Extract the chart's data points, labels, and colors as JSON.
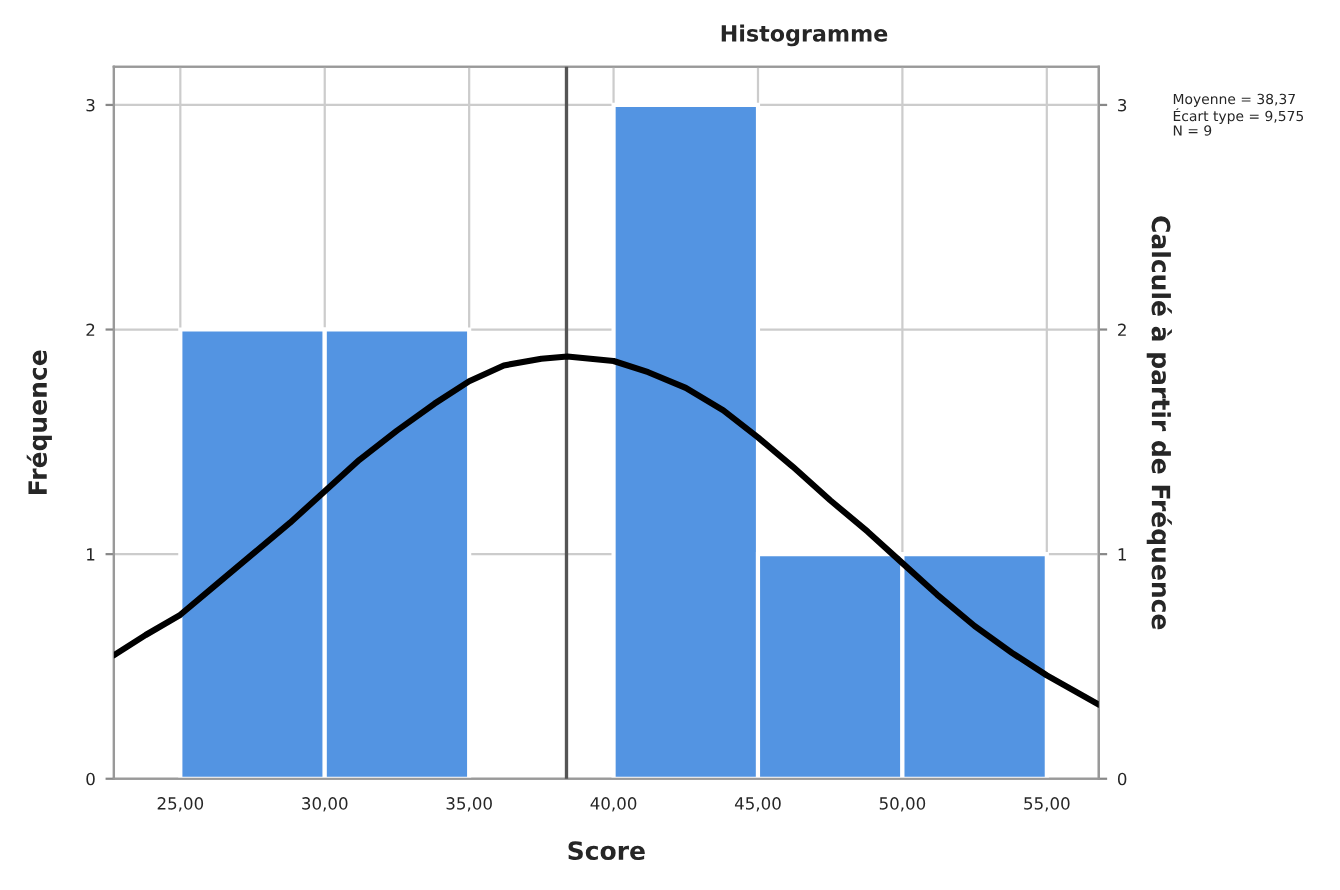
{
  "chart_data": {
    "type": "histogram",
    "title": "Histogramme",
    "xlabel": "Score",
    "ylabel": "Fréquence",
    "y2label": "Calculé à partir de Fréquence",
    "bins": [
      25,
      30,
      35,
      40,
      45,
      50,
      55
    ],
    "values": [
      2,
      2,
      0,
      3,
      1,
      1
    ],
    "color": "#5394e2",
    "series": [
      {
        "type": "line",
        "color": "#000000",
        "x": [
          22.7,
          23.8,
          25,
          26.2,
          27.5,
          28.8,
          30,
          31.2,
          32.5,
          33.8,
          35,
          36.2,
          37.5,
          38.4,
          39.2,
          40,
          41.2,
          42.5,
          43.8,
          45,
          46.2,
          47.5,
          48.8,
          50,
          51.2,
          52.5,
          53.8,
          55,
          56.8
        ],
        "values": [
          0.55,
          0.64,
          0.73,
          0.86,
          1.0,
          1.14,
          1.28,
          1.42,
          1.55,
          1.67,
          1.77,
          1.84,
          1.87,
          1.88,
          1.87,
          1.86,
          1.81,
          1.74,
          1.64,
          1.52,
          1.39,
          1.24,
          1.1,
          0.96,
          0.82,
          0.68,
          0.56,
          0.46,
          0.33
        ]
      }
    ],
    "ref_lines": [
      {
        "axis": "x",
        "value": 38.37,
        "color": "#555555"
      }
    ],
    "annotations": [
      "Moyenne = 38,37\nÉcart type = 9,575\nN = 9"
    ],
    "xlim": [
      22.7,
      56.8
    ],
    "ylim": [
      0,
      3.17
    ],
    "y2lim": [
      0,
      3.17
    ],
    "xticks": [
      {
        "value": 25,
        "label": "25,00"
      },
      {
        "value": 30,
        "label": "30,00"
      },
      {
        "value": 35,
        "label": "35,00"
      },
      {
        "value": 40,
        "label": "40,00"
      },
      {
        "value": 45,
        "label": "45,00"
      },
      {
        "value": 50,
        "label": "50,00"
      },
      {
        "value": 55,
        "label": "55,00"
      }
    ],
    "yticks": [
      0,
      1,
      2,
      3
    ],
    "y2ticks": [
      0,
      1,
      2,
      3
    ],
    "grid": true
  }
}
